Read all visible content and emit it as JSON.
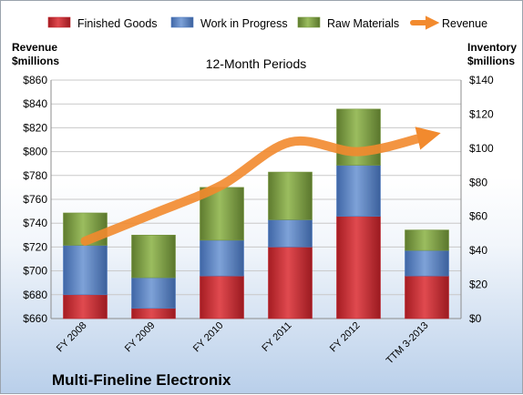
{
  "chart_data": {
    "type": "bar",
    "stacked": true,
    "title": "12-Month Periods",
    "company": "Multi-Fineline Electronix",
    "categories": [
      "FY 2008",
      "FY 2009",
      "FY 2010",
      "FY 2011",
      "FY 2012",
      "TTM 3-2013"
    ],
    "y_left": {
      "label_line1": "Revenue",
      "label_line2": "$millions",
      "range": [
        660,
        860
      ],
      "ticks": [
        "$660",
        "$680",
        "$700",
        "$720",
        "$740",
        "$760",
        "$780",
        "$800",
        "$820",
        "$840",
        "$860"
      ]
    },
    "y_right": {
      "label_line1": "Inventory",
      "label_line2": "$millions",
      "range": [
        0,
        140
      ],
      "ticks": [
        "$0",
        "$20",
        "$40",
        "$60",
        "$80",
        "$100",
        "$120",
        "$140"
      ]
    },
    "grid": true,
    "legend_position": "top",
    "series": [
      {
        "name": "Finished Goods",
        "type": "bar",
        "axis": "right",
        "color": "#c0262d",
        "values": [
          14,
          6,
          25,
          42,
          60,
          25
        ]
      },
      {
        "name": "Work in Progress",
        "type": "bar",
        "axis": "right",
        "color": "#4f7bbe",
        "values": [
          29,
          18,
          21,
          16,
          30,
          15
        ]
      },
      {
        "name": "Raw Materials",
        "type": "bar",
        "axis": "right",
        "color": "#76963f",
        "values": [
          19,
          25,
          31,
          28,
          33,
          12
        ]
      },
      {
        "name": "Revenue",
        "type": "line",
        "axis": "left",
        "color": "#f28a2e",
        "values": [
          725,
          748,
          772,
          808,
          800,
          813
        ]
      }
    ]
  }
}
